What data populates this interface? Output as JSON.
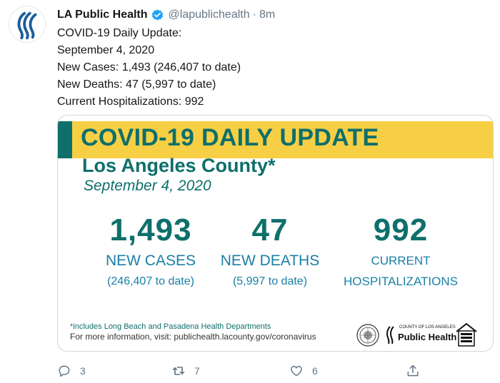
{
  "account": {
    "name": "LA Public Health",
    "handle": "@lapublichealth",
    "separator": "·",
    "time": "8m"
  },
  "tweet": {
    "lines": [
      "COVID-19 Daily Update:",
      "September 4, 2020",
      "New Cases: 1,493 (246,407 to date)",
      "New Deaths: 47 (5,997 to date)",
      "Current Hospitalizations: 992"
    ]
  },
  "card": {
    "title": "COVID-19 DAILY UPDATE",
    "county": "Los Angeles County*",
    "date": "September 4, 2020",
    "stats": {
      "cases": {
        "number": "1,493",
        "label": "NEW CASES",
        "sub": "(246,407 to date)"
      },
      "deaths": {
        "number": "47",
        "label": "NEW DEATHS",
        "sub": "(5,997 to date)"
      },
      "hospitalizations": {
        "number": "992",
        "label_line1": "CURRENT",
        "label_line2": "HOSPITALIZATIONS"
      }
    },
    "footnote": "*includes Long Beach and Pasadena Health Departments",
    "more_info": "For more information, visit: publichealth.lacounty.gov/coronavirus",
    "logo_small": "COUNTY OF LOS ANGELES",
    "logo_big": "Public Health",
    "colors": {
      "teal": "#0e6f6b",
      "yellow": "#f7cf45",
      "blue": "#1a7fa5"
    }
  },
  "actions": {
    "reply": {
      "icon": "reply-icon",
      "count": "3"
    },
    "retweet": {
      "icon": "retweet-icon",
      "count": "7"
    },
    "like": {
      "icon": "heart-icon",
      "count": "6"
    },
    "share": {
      "icon": "share-icon",
      "count": ""
    }
  }
}
